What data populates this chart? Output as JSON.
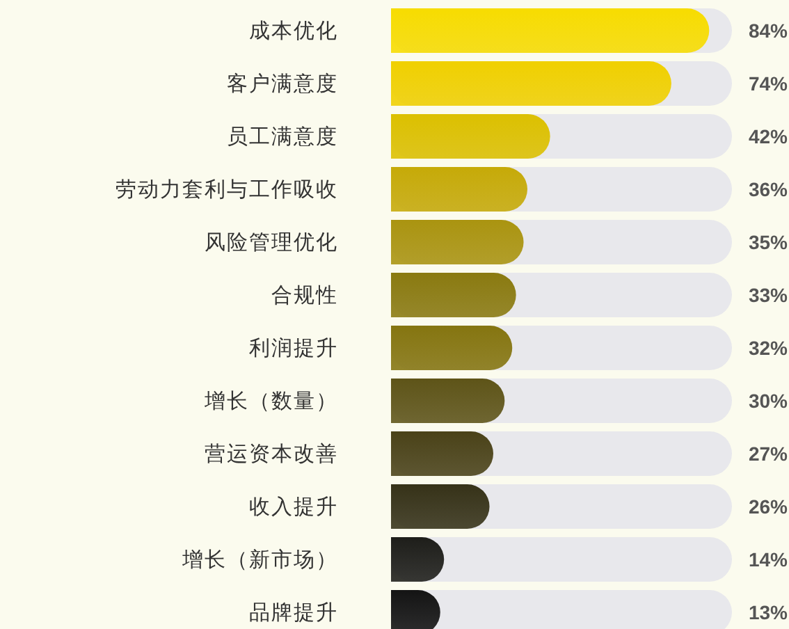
{
  "chart_data": {
    "type": "bar",
    "orientation": "horizontal",
    "categories": [
      "成本优化",
      "客户满意度",
      "员工满意度",
      "劳动力套利与工作吸收",
      "风险管理优化",
      "合规性",
      "利润提升",
      "增长（数量）",
      "营运资本改善",
      "收入提升",
      "增长（新市场）",
      "品牌提升"
    ],
    "values": [
      84,
      74,
      42,
      36,
      35,
      33,
      32,
      30,
      27,
      26,
      14,
      13
    ],
    "colors": [
      "#f7dc00",
      "#f0d000",
      "#dcc000",
      "#c6aa08",
      "#aa9410",
      "#8a7a10",
      "#857510",
      "#5e5418",
      "#4a4218",
      "#363218",
      "#1e1e1a",
      "#141414"
    ],
    "xlim": [
      0,
      90
    ],
    "value_labels": [
      "84%",
      "74%",
      "42%",
      "36%",
      "35%",
      "33%",
      "32%",
      "30%",
      "27%",
      "26%",
      "14%",
      "13%"
    ]
  }
}
